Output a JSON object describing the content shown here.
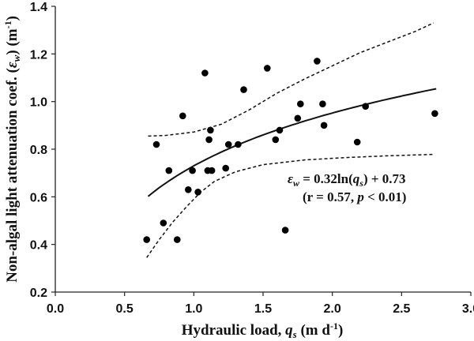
{
  "chart_data": {
    "type": "scatter",
    "title": "",
    "xlabel": {
      "main": "Hydraulic load, ",
      "var": "q",
      "sub": "s",
      "unit": " (m d",
      "sup": "-1",
      "close": ")"
    },
    "ylabel": {
      "main": "Non-algal light attenuation coef. (",
      "var": "ε",
      "sub": "w",
      "mid": ") (m",
      "sup": "-1",
      "close": ")"
    },
    "xlim": [
      0.0,
      3.0
    ],
    "ylim": [
      0.2,
      1.4
    ],
    "x_ticks": [
      "0.0",
      "0.5",
      "1.0",
      "1.5",
      "2.0",
      "2.5",
      "3.0"
    ],
    "y_ticks": [
      "0.2",
      "0.4",
      "0.6",
      "0.8",
      "1.0",
      "1.2",
      "1.4"
    ],
    "grid": false,
    "points": [
      {
        "x": 0.66,
        "y": 0.42
      },
      {
        "x": 0.73,
        "y": 0.82
      },
      {
        "x": 0.78,
        "y": 0.49
      },
      {
        "x": 0.82,
        "y": 0.71
      },
      {
        "x": 0.88,
        "y": 0.42
      },
      {
        "x": 0.92,
        "y": 0.94
      },
      {
        "x": 0.96,
        "y": 0.63
      },
      {
        "x": 0.99,
        "y": 0.71
      },
      {
        "x": 1.03,
        "y": 0.62
      },
      {
        "x": 1.08,
        "y": 1.12
      },
      {
        "x": 1.1,
        "y": 0.71
      },
      {
        "x": 1.11,
        "y": 0.84
      },
      {
        "x": 1.12,
        "y": 0.88
      },
      {
        "x": 1.13,
        "y": 0.71
      },
      {
        "x": 1.23,
        "y": 0.72
      },
      {
        "x": 1.25,
        "y": 0.82
      },
      {
        "x": 1.32,
        "y": 0.82
      },
      {
        "x": 1.36,
        "y": 1.05
      },
      {
        "x": 1.53,
        "y": 1.14
      },
      {
        "x": 1.59,
        "y": 0.84
      },
      {
        "x": 1.62,
        "y": 0.88
      },
      {
        "x": 1.66,
        "y": 0.46
      },
      {
        "x": 1.75,
        "y": 0.93
      },
      {
        "x": 1.77,
        "y": 0.99
      },
      {
        "x": 1.89,
        "y": 1.17
      },
      {
        "x": 1.93,
        "y": 0.99
      },
      {
        "x": 1.94,
        "y": 0.9
      },
      {
        "x": 2.18,
        "y": 0.83
      },
      {
        "x": 2.24,
        "y": 0.98
      },
      {
        "x": 2.74,
        "y": 0.95
      }
    ],
    "fit": {
      "a": 0.32,
      "b": 0.73,
      "x_range": [
        0.67,
        2.75
      ],
      "style": "solid"
    },
    "upper_band": {
      "style": "dashed",
      "points": [
        {
          "x": 0.67,
          "y": 0.855
        },
        {
          "x": 0.8,
          "y": 0.858
        },
        {
          "x": 1.0,
          "y": 0.872
        },
        {
          "x": 1.2,
          "y": 0.905
        },
        {
          "x": 1.4,
          "y": 0.965
        },
        {
          "x": 1.6,
          "y": 1.035
        },
        {
          "x": 1.8,
          "y": 1.095
        },
        {
          "x": 2.0,
          "y": 1.15
        },
        {
          "x": 2.2,
          "y": 1.205
        },
        {
          "x": 2.4,
          "y": 1.25
        },
        {
          "x": 2.6,
          "y": 1.295
        },
        {
          "x": 2.73,
          "y": 1.33
        }
      ]
    },
    "lower_band": {
      "style": "dashed",
      "points": [
        {
          "x": 0.66,
          "y": 0.345
        },
        {
          "x": 0.75,
          "y": 0.42
        },
        {
          "x": 0.85,
          "y": 0.495
        },
        {
          "x": 0.95,
          "y": 0.56
        },
        {
          "x": 1.05,
          "y": 0.62
        },
        {
          "x": 1.15,
          "y": 0.665
        },
        {
          "x": 1.3,
          "y": 0.705
        },
        {
          "x": 1.5,
          "y": 0.735
        },
        {
          "x": 1.8,
          "y": 0.755
        },
        {
          "x": 2.1,
          "y": 0.765
        },
        {
          "x": 2.4,
          "y": 0.772
        },
        {
          "x": 2.73,
          "y": 0.778
        }
      ]
    },
    "annotation": {
      "eq_var": "ε",
      "eq_var_sub": "w",
      "eq_mid": " = 0.32ln(",
      "eq_arg": "q",
      "eq_arg_sub": "s",
      "eq_tail": ") + 0.73",
      "stat_open": "(r = 0.57, ",
      "stat_p": "p",
      "stat_close": " < 0.01)"
    }
  }
}
